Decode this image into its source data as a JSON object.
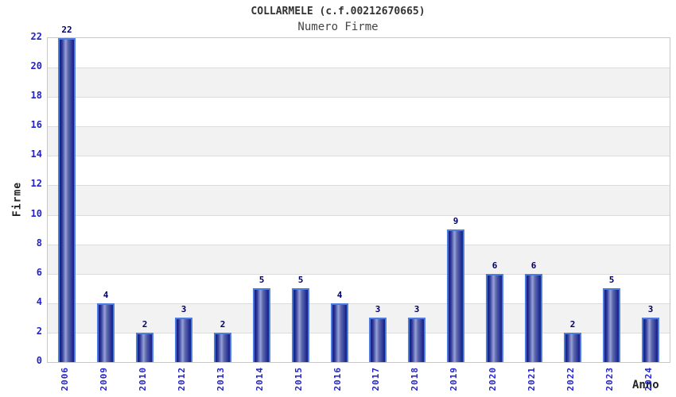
{
  "header": {
    "title": "COLLARMELE (c.f.00212670665)",
    "subtitle": "Numero Firme"
  },
  "chart_data": {
    "type": "bar",
    "title": "COLLARMELE (c.f.00212670665)",
    "subtitle": "Numero Firme",
    "xlabel": "Anno",
    "ylabel": "Firme",
    "categories": [
      "2006",
      "2009",
      "2010",
      "2012",
      "2013",
      "2014",
      "2015",
      "2016",
      "2017",
      "2018",
      "2019",
      "2020",
      "2021",
      "2022",
      "2023",
      "2024"
    ],
    "values": [
      22,
      4,
      2,
      3,
      2,
      5,
      5,
      4,
      3,
      3,
      9,
      6,
      6,
      2,
      5,
      3
    ],
    "bar_labels": true,
    "ylim": [
      0,
      22
    ],
    "yticks": [
      0,
      2,
      4,
      6,
      8,
      10,
      12,
      14,
      16,
      18,
      20,
      22
    ],
    "grid": "horizontal-bands-alternating",
    "legend": "none"
  },
  "colors": {
    "tick_label_blue": "#2222cc",
    "bar_value_navy": "#000066",
    "bar_edge_blue": "#4d7de0",
    "bar_body_dark": "#141c7c",
    "bar_body_light": "#98a2d6",
    "band_gray": "#f2f2f2",
    "band_white": "#ffffff",
    "gridline_gray": "#dcdcdc",
    "plot_border_gray": "#c8c8c8",
    "title_color": "#333333"
  }
}
